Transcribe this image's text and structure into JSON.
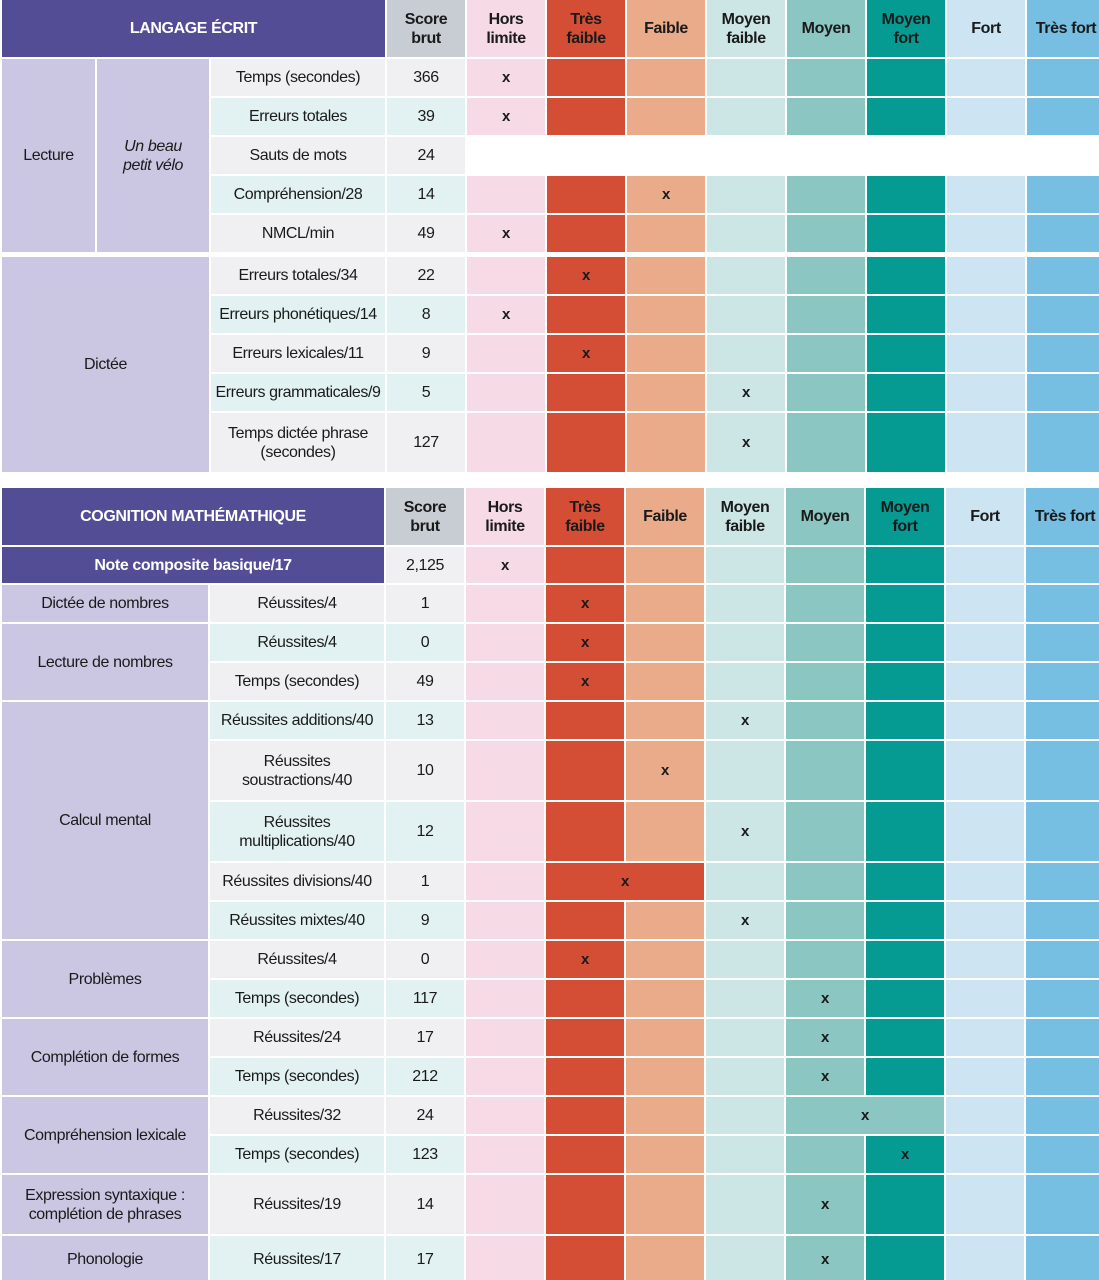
{
  "header_columns": {
    "score": "Score\nbrut",
    "categories": [
      "Hors\nlimite",
      "Très\nfaible",
      "Faible",
      "Moyen\nfaible",
      "Moyen",
      "Moyen\nfort",
      "Fort",
      "Très fort"
    ]
  },
  "section1": {
    "title": "LANGAGE ÉCRIT",
    "lecture": {
      "label": "Lecture",
      "text_title": "Un beau\npetit vélo",
      "rows": [
        {
          "label": "Temps (secondes)",
          "score": "366",
          "mark_col": 0
        },
        {
          "label": "Erreurs totales",
          "score": "39",
          "mark_col": 0
        },
        {
          "label": "Sauts de mots",
          "score": "24",
          "mark_col": null
        },
        {
          "label": "Compréhension/28",
          "score": "14",
          "mark_col": 2
        },
        {
          "label": "NMCL/min",
          "score": "49",
          "mark_col": 0
        }
      ]
    },
    "dictee": {
      "label": "Dictée",
      "rows": [
        {
          "label": "Erreurs totales/34",
          "score": "22",
          "mark_col": 1
        },
        {
          "label": "Erreurs phonétiques/14",
          "score": "8",
          "mark_col": 0
        },
        {
          "label": "Erreurs lexicales/11",
          "score": "9",
          "mark_col": 1
        },
        {
          "label": "Erreurs grammaticales/9",
          "score": "5",
          "mark_col": 3
        },
        {
          "label": "Temps dictée phrase\n(secondes)",
          "score": "127",
          "mark_col": 3
        }
      ]
    }
  },
  "section2": {
    "title": "COGNITION MATHÉMATHIQUE",
    "composite": {
      "label": "Note composite basique/17",
      "score": "2,125",
      "mark_col": 0
    },
    "groups": [
      {
        "label": "Dictée de nombres",
        "rows": [
          {
            "label": "Réussites/4",
            "score": "1",
            "mark_col": 1
          }
        ]
      },
      {
        "label": "Lecture de nombres",
        "rows": [
          {
            "label": "Réussites/4",
            "score": "0",
            "mark_col": 1
          },
          {
            "label": "Temps (secondes)",
            "score": "49",
            "mark_col": 1
          }
        ]
      },
      {
        "label": "Calcul mental",
        "rows": [
          {
            "label": "Réussites additions/40",
            "score": "13",
            "mark_col": 3
          },
          {
            "label": "Réussites\nsoustractions/40",
            "score": "10",
            "mark_col": 2
          },
          {
            "label": "Réussites\nmultiplications/40",
            "score": "12",
            "mark_col": 3
          },
          {
            "label": "Réussites divisions/40",
            "score": "1",
            "mark_col": 1.5
          },
          {
            "label": "Réussites mixtes/40",
            "score": "9",
            "mark_col": 3
          }
        ]
      },
      {
        "label": "Problèmes",
        "rows": [
          {
            "label": "Réussites/4",
            "score": "0",
            "mark_col": 1
          },
          {
            "label": "Temps (secondes)",
            "score": "117",
            "mark_col": 4
          }
        ]
      },
      {
        "label": "Complétion de formes",
        "rows": [
          {
            "label": "Réussites/24",
            "score": "17",
            "mark_col": 4
          },
          {
            "label": "Temps (secondes)",
            "score": "212",
            "mark_col": 4
          }
        ]
      },
      {
        "label": "Compréhension lexicale",
        "rows": [
          {
            "label": "Réussites/32",
            "score": "24",
            "mark_col": 4.5
          },
          {
            "label": "Temps (secondes)",
            "score": "123",
            "mark_col": 5
          }
        ]
      },
      {
        "label": "Expression syntaxique :\ncomplétion de phrases",
        "rows": [
          {
            "label": "Réussites/19",
            "score": "14",
            "mark_col": 4
          }
        ]
      },
      {
        "label": "Phonologie",
        "rows": [
          {
            "label": "Réussites/17",
            "score": "17",
            "mark_col": 4
          }
        ]
      }
    ]
  },
  "mark_symbol": "x"
}
